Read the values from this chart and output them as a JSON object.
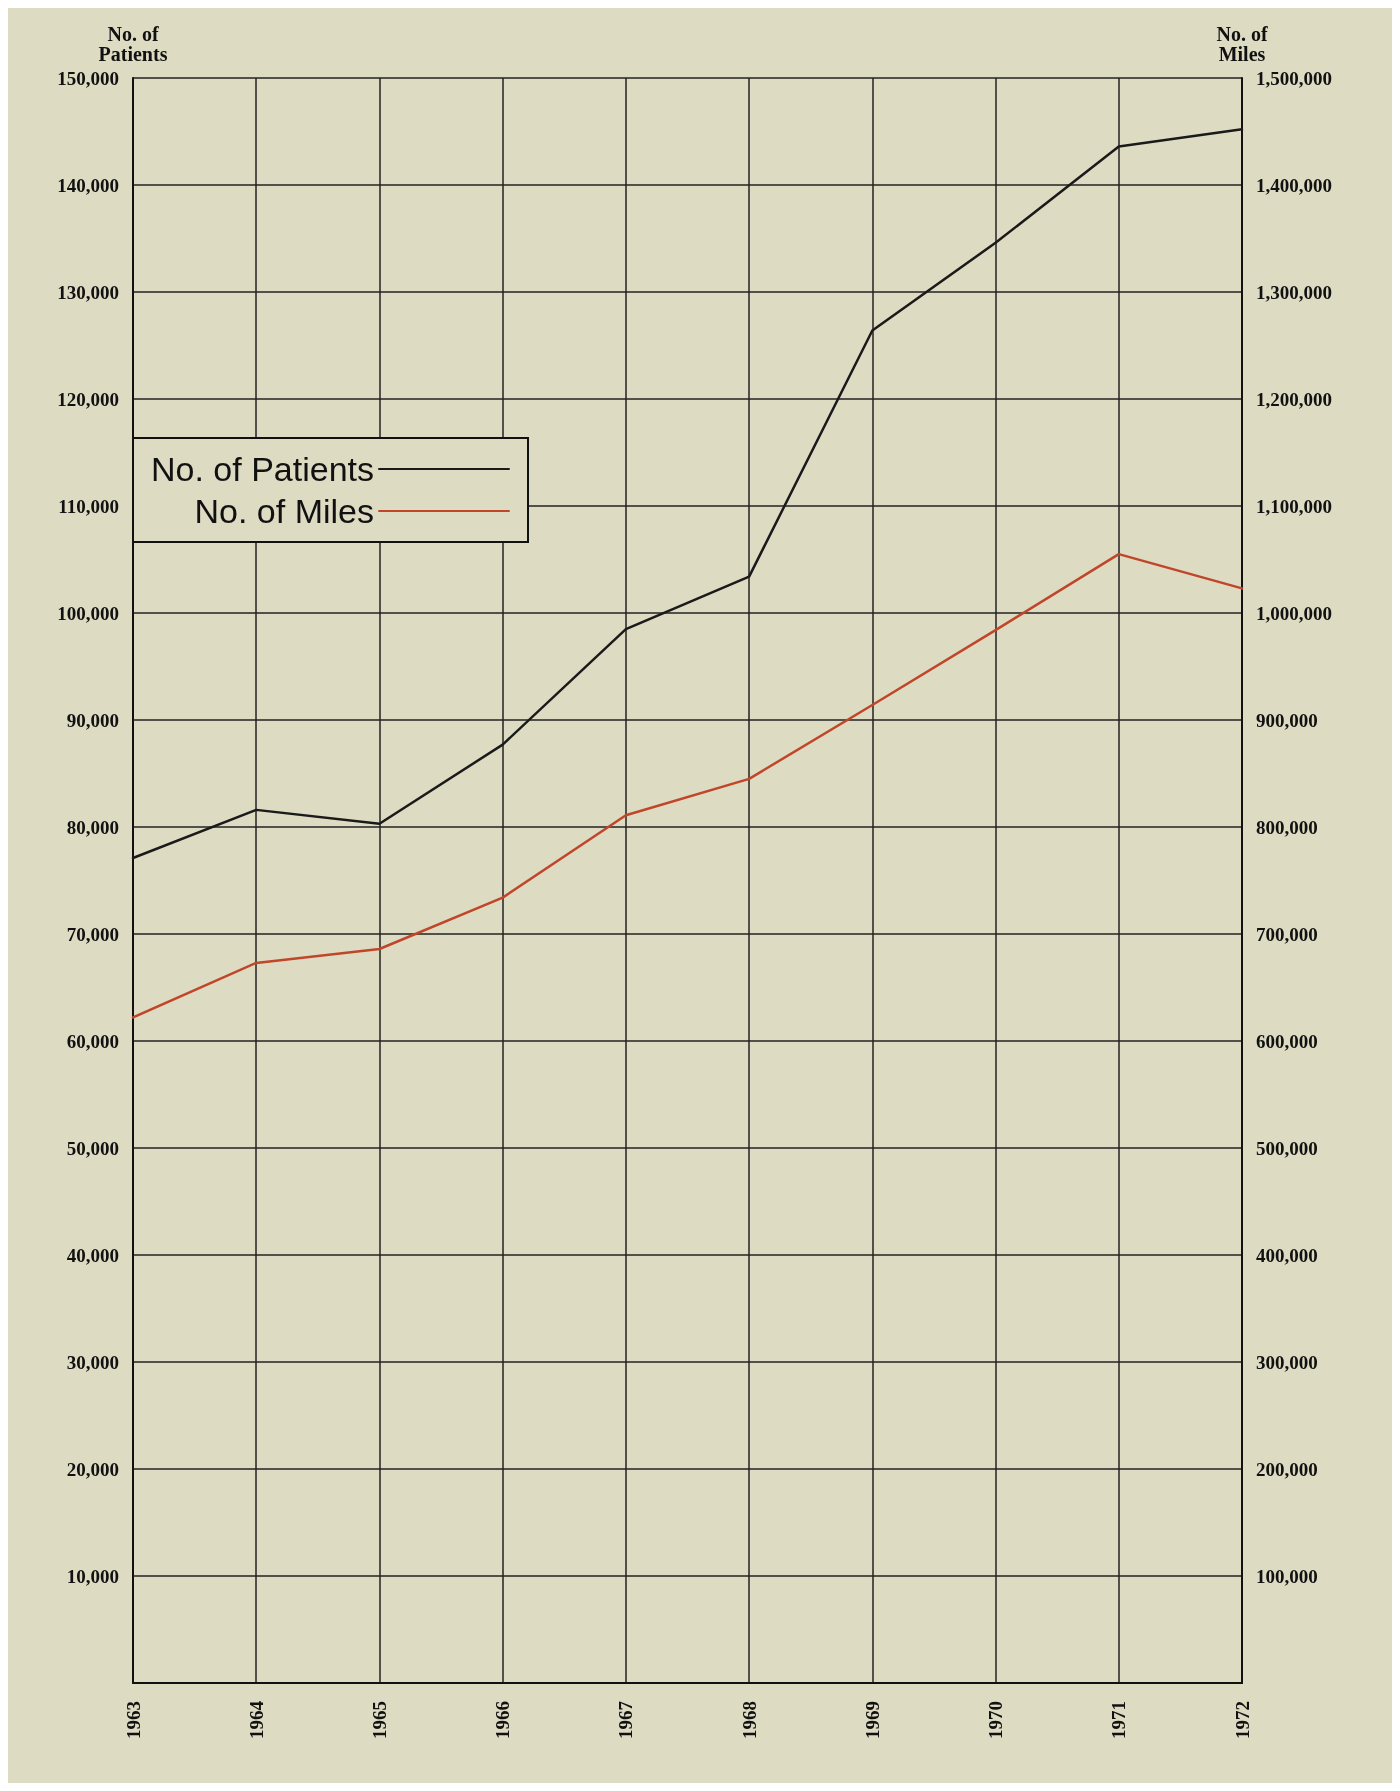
{
  "chart_data": {
    "type": "line",
    "ylabel": "No. of\nPatients",
    "y2label": "No. of\nMiles",
    "categories": [
      "1963",
      "1964",
      "1965",
      "1966",
      "1967",
      "1968",
      "1969",
      "1970",
      "1971",
      "1972"
    ],
    "series": [
      {
        "name": "No. of Patients",
        "color": "#1a1a1a",
        "values": [
          77100,
          81600,
          80300,
          87700,
          98500,
          103400,
          126400,
          134600,
          143600,
          145200
        ]
      },
      {
        "name": "No. of Miles",
        "color": "#c0462a",
        "axis": "y2",
        "values": [
          622000,
          673000,
          686000,
          734000,
          811000,
          845000,
          914000,
          984000,
          1055000,
          1023000
        ]
      }
    ],
    "ylim": [
      0,
      150000
    ],
    "yticks": [
      {
        "value": 10000,
        "label": "10,000"
      },
      {
        "value": 20000,
        "label": "20,000"
      },
      {
        "value": 30000,
        "label": "30,000"
      },
      {
        "value": 40000,
        "label": "40,000"
      },
      {
        "value": 50000,
        "label": "50,000"
      },
      {
        "value": 60000,
        "label": "60,000"
      },
      {
        "value": 70000,
        "label": "70,000"
      },
      {
        "value": 80000,
        "label": "80,000"
      },
      {
        "value": 90000,
        "label": "90,000"
      },
      {
        "value": 100000,
        "label": "100,000"
      },
      {
        "value": 110000,
        "label": "110,000"
      },
      {
        "value": 120000,
        "label": "120,000"
      },
      {
        "value": 130000,
        "label": "130,000"
      },
      {
        "value": 140000,
        "label": "140,000"
      },
      {
        "value": 150000,
        "label": "150,000"
      }
    ],
    "y2lim": [
      0,
      1500000
    ],
    "y2ticks": [
      {
        "value": 100000,
        "label": "100,000"
      },
      {
        "value": 200000,
        "label": "200,000"
      },
      {
        "value": 300000,
        "label": "300,000"
      },
      {
        "value": 400000,
        "label": "400,000"
      },
      {
        "value": 500000,
        "label": "500,000"
      },
      {
        "value": 600000,
        "label": "600,000"
      },
      {
        "value": 700000,
        "label": "700,000"
      },
      {
        "value": 800000,
        "label": "800,000"
      },
      {
        "value": 900000,
        "label": "900,000"
      },
      {
        "value": 1000000,
        "label": "1,000,000"
      },
      {
        "value": 1100000,
        "label": "1,100,000"
      },
      {
        "value": 1200000,
        "label": "1,200,000"
      },
      {
        "value": 1300000,
        "label": "1,300,000"
      },
      {
        "value": 1400000,
        "label": "1,400,000"
      },
      {
        "value": 1500000,
        "label": "1,500,000"
      }
    ],
    "grid": true,
    "legend": "top left",
    "marker": "none",
    "line_style": "solid"
  }
}
